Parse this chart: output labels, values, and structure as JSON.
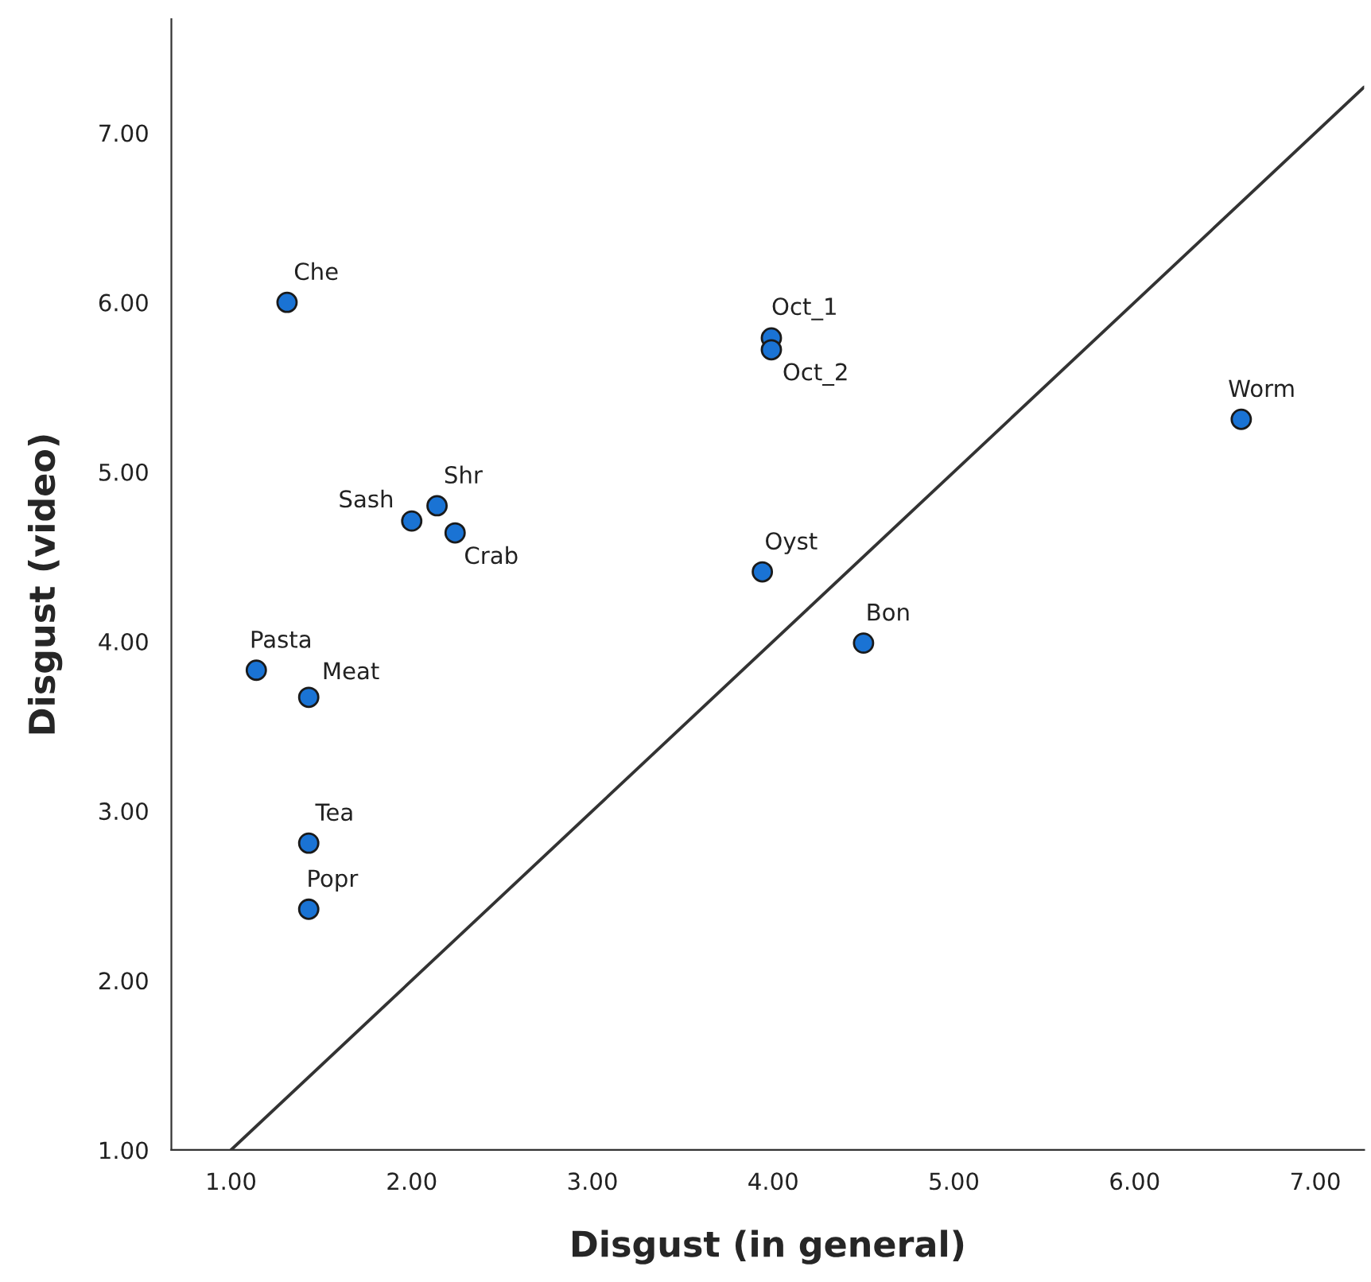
{
  "chart_data": {
    "type": "scatter",
    "xlabel": "Disgust (in general)",
    "ylabel": "Disgust (video)",
    "xlim": [
      0.67,
      7.27
    ],
    "ylim": [
      1,
      7.67
    ],
    "xticks": [
      {
        "value": 1,
        "label": "1.00"
      },
      {
        "value": 2,
        "label": "2.00"
      },
      {
        "value": 3,
        "label": "3.00"
      },
      {
        "value": 4,
        "label": "4.00"
      },
      {
        "value": 5,
        "label": "5.00"
      },
      {
        "value": 6,
        "label": "6.00"
      },
      {
        "value": 7,
        "label": "7.00"
      }
    ],
    "yticks": [
      {
        "value": 1,
        "label": "1.00"
      },
      {
        "value": 2,
        "label": "2.00"
      },
      {
        "value": 3,
        "label": "3.00"
      },
      {
        "value": 4,
        "label": "4.00"
      },
      {
        "value": 5,
        "label": "5.00"
      },
      {
        "value": 6,
        "label": "6.00"
      },
      {
        "value": 7,
        "label": "7.00"
      }
    ],
    "grid": false,
    "marker": "circle",
    "series": [
      {
        "color": "#1a73d4",
        "x": [
          1.31,
          3.99,
          3.99,
          2.0,
          2.14,
          2.24,
          3.94,
          4.5,
          6.59,
          1.14,
          1.43,
          1.43,
          1.43
        ],
        "values": [
          6.0,
          5.79,
          5.72,
          4.71,
          4.8,
          4.64,
          4.41,
          3.99,
          5.31,
          3.83,
          3.67,
          2.81,
          2.42
        ]
      },
      {
        "type": "line",
        "color": "#333333",
        "marker": "none",
        "x": [
          1,
          7.27
        ],
        "values": [
          1,
          7.27
        ]
      }
    ],
    "annotations": [
      {
        "text": "Che",
        "x": 1.31,
        "y": 6.0
      },
      {
        "text": "Oct_1",
        "x": 3.99,
        "y": 5.79
      },
      {
        "text": "Oct_2",
        "x": 3.99,
        "y": 5.72
      },
      {
        "text": "Sash",
        "x": 2.0,
        "y": 4.71
      },
      {
        "text": "Shr",
        "x": 2.14,
        "y": 4.8
      },
      {
        "text": "Crab",
        "x": 2.24,
        "y": 4.64
      },
      {
        "text": "Oyst",
        "x": 3.94,
        "y": 4.41
      },
      {
        "text": "Bon",
        "x": 4.5,
        "y": 3.99
      },
      {
        "text": "Worm",
        "x": 6.59,
        "y": 5.31
      },
      {
        "text": "Pasta",
        "x": 1.14,
        "y": 3.83
      },
      {
        "text": "Meat",
        "x": 1.43,
        "y": 3.67
      },
      {
        "text": "Tea",
        "x": 1.43,
        "y": 2.81
      },
      {
        "text": "Popr",
        "x": 1.43,
        "y": 2.42
      }
    ]
  }
}
